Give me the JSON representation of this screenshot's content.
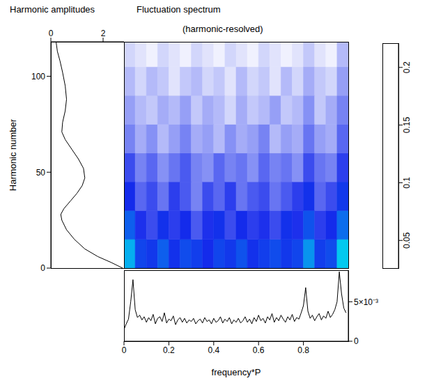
{
  "chart_data": [
    {
      "type": "line",
      "title": "Harmonic amplitudes",
      "ylabel": "Harmonic number",
      "color": "#000000",
      "x": [
        2.75,
        2.3,
        1.8,
        1.3,
        0.9,
        0.6,
        0.42,
        0.38,
        0.5,
        0.75,
        1.0,
        1.2,
        1.3,
        1.25,
        1.05,
        0.8,
        0.55,
        0.42,
        0.45,
        0.55,
        0.6,
        0.55,
        0.45,
        0.35,
        0.25,
        0.2
      ],
      "y": [
        0,
        3,
        6,
        10,
        15,
        20,
        25,
        28,
        31,
        35,
        39,
        43,
        47,
        52,
        57,
        62,
        67,
        71,
        76,
        82,
        88,
        95,
        102,
        108,
        113,
        118
      ],
      "xlim": [
        0,
        2.8
      ],
      "xticks": [
        0,
        2
      ],
      "ylim": [
        0,
        118
      ],
      "yticks": [
        0,
        50,
        100
      ]
    },
    {
      "type": "heatmap",
      "title": "Fluctuation spectrum",
      "subtitle": "(harmonic-resolved)",
      "xlim": [
        0,
        1
      ],
      "ylim": [
        0,
        118
      ],
      "x_edges": [
        0,
        0.05,
        0.1,
        0.15,
        0.2,
        0.25,
        0.3,
        0.35,
        0.4,
        0.45,
        0.5,
        0.55,
        0.6,
        0.65,
        0.7,
        0.75,
        0.8,
        0.85,
        0.9,
        0.95,
        1
      ],
      "y_edges": [
        0,
        15,
        30,
        45,
        60,
        75,
        90,
        105,
        118
      ],
      "cells": [
        [
          0.062,
          0.046,
          0.044,
          0.05,
          0.043,
          0.047,
          0.045,
          0.042,
          0.046,
          0.044,
          0.048,
          0.043,
          0.045,
          0.047,
          0.044,
          0.046,
          0.058,
          0.045,
          0.047,
          0.066
        ],
        [
          0.05,
          0.041,
          0.039,
          0.043,
          0.04,
          0.042,
          0.038,
          0.041,
          0.043,
          0.039,
          0.042,
          0.04,
          0.041,
          0.039,
          0.043,
          0.041,
          0.048,
          0.04,
          0.042,
          0.052
        ],
        [
          0.042,
          0.037,
          0.039,
          0.036,
          0.04,
          0.038,
          0.035,
          0.039,
          0.037,
          0.04,
          0.036,
          0.038,
          0.039,
          0.036,
          0.038,
          0.04,
          0.043,
          0.037,
          0.039,
          0.044
        ],
        [
          0.039,
          0.035,
          0.037,
          0.034,
          0.036,
          0.038,
          0.035,
          0.034,
          0.037,
          0.035,
          0.036,
          0.034,
          0.037,
          0.035,
          0.036,
          0.034,
          0.039,
          0.036,
          0.035,
          0.04
        ],
        [
          0.035,
          0.032,
          0.034,
          0.031,
          0.033,
          0.035,
          0.032,
          0.033,
          0.031,
          0.034,
          0.032,
          0.033,
          0.035,
          0.031,
          0.033,
          0.032,
          0.036,
          0.033,
          0.032,
          0.037
        ],
        [
          0.033,
          0.031,
          0.03,
          0.032,
          0.031,
          0.033,
          0.03,
          0.032,
          0.031,
          0.029,
          0.032,
          0.03,
          0.031,
          0.033,
          0.03,
          0.031,
          0.034,
          0.03,
          0.032,
          0.035
        ],
        [
          0.031,
          0.029,
          0.031,
          0.03,
          0.028,
          0.03,
          0.031,
          0.029,
          0.03,
          0.028,
          0.031,
          0.029,
          0.03,
          0.028,
          0.031,
          0.029,
          0.032,
          0.03,
          0.029,
          0.033
        ],
        [
          0.029,
          0.028,
          0.027,
          0.029,
          0.028,
          0.027,
          0.029,
          0.028,
          0.027,
          0.029,
          0.028,
          0.027,
          0.029,
          0.028,
          0.027,
          0.028,
          0.03,
          0.028,
          0.027,
          0.031
        ]
      ],
      "colorbar": {
        "range": [
          0.026,
          0.221
        ],
        "ticks": [
          0.05,
          0.1,
          0.15,
          0.2
        ]
      }
    },
    {
      "type": "line",
      "xlabel": "frequency*P",
      "color": "#000000",
      "x": [
        0,
        0.01,
        0.02,
        0.03,
        0.04,
        0.05,
        0.06,
        0.07,
        0.08,
        0.09,
        0.1,
        0.11,
        0.12,
        0.13,
        0.14,
        0.15,
        0.16,
        0.17,
        0.18,
        0.19,
        0.2,
        0.21,
        0.22,
        0.23,
        0.24,
        0.25,
        0.26,
        0.27,
        0.28,
        0.29,
        0.3,
        0.31,
        0.32,
        0.33,
        0.34,
        0.35,
        0.36,
        0.37,
        0.38,
        0.39,
        0.4,
        0.41,
        0.42,
        0.43,
        0.44,
        0.45,
        0.46,
        0.47,
        0.48,
        0.49,
        0.5,
        0.51,
        0.52,
        0.53,
        0.54,
        0.55,
        0.56,
        0.57,
        0.58,
        0.59,
        0.6,
        0.61,
        0.62,
        0.63,
        0.64,
        0.65,
        0.66,
        0.67,
        0.68,
        0.69,
        0.7,
        0.71,
        0.72,
        0.73,
        0.74,
        0.75,
        0.76,
        0.77,
        0.78,
        0.79,
        0.8,
        0.81,
        0.82,
        0.83,
        0.84,
        0.85,
        0.86,
        0.87,
        0.88,
        0.89,
        0.9,
        0.91,
        0.92,
        0.93,
        0.94,
        0.95,
        0.96,
        0.97,
        0.98,
        0.99
      ],
      "values": [
        0.0015,
        0.0022,
        0.0028,
        0.005,
        0.0078,
        0.004,
        0.003,
        0.0033,
        0.0027,
        0.0031,
        0.0024,
        0.003,
        0.0026,
        0.0034,
        0.0022,
        0.0029,
        0.0031,
        0.0025,
        0.0036,
        0.0023,
        0.0028,
        0.0026,
        0.0032,
        0.0021,
        0.0027,
        0.003,
        0.0024,
        0.0029,
        0.0023,
        0.0027,
        0.0025,
        0.0029,
        0.0022,
        0.0026,
        0.0028,
        0.0023,
        0.003,
        0.0025,
        0.0027,
        0.0022,
        0.0029,
        0.0024,
        0.0026,
        0.0031,
        0.0023,
        0.0028,
        0.0025,
        0.003,
        0.0022,
        0.0027,
        0.0024,
        0.0029,
        0.0023,
        0.0026,
        0.0031,
        0.0024,
        0.0028,
        0.0022,
        0.003,
        0.0025,
        0.0033,
        0.0026,
        0.0029,
        0.0023,
        0.0031,
        0.0027,
        0.0035,
        0.0024,
        0.003,
        0.0026,
        0.0033,
        0.0028,
        0.0024,
        0.0031,
        0.0027,
        0.0034,
        0.0025,
        0.003,
        0.0028,
        0.0036,
        0.0045,
        0.0068,
        0.0038,
        0.0029,
        0.0033,
        0.0026,
        0.0031,
        0.0035,
        0.0027,
        0.0032,
        0.0029,
        0.0038,
        0.003,
        0.0034,
        0.004,
        0.005,
        0.0088,
        0.006,
        0.0042,
        0.0036
      ],
      "xlim": [
        0,
        1
      ],
      "xticks": [
        0,
        0.2,
        0.4,
        0.6,
        0.8
      ],
      "ylim": [
        0,
        0.009
      ],
      "yticks": [
        0,
        {
          "value": 0.005,
          "label": "5×10⁻³"
        }
      ]
    }
  ]
}
